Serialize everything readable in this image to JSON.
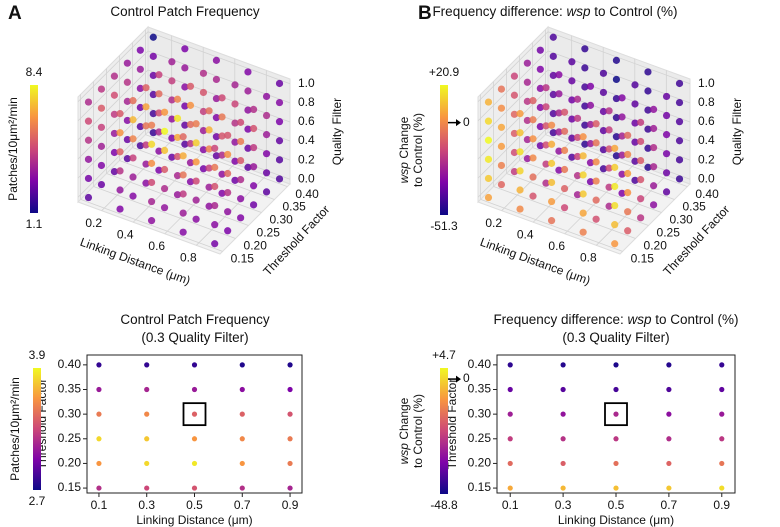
{
  "chart_data": [
    {
      "type": "scatter3d",
      "panel": "A",
      "colormap": "plasma",
      "title": [
        [
          {
            "text": "Control Patch Frequency"
          }
        ]
      ],
      "xlabel": "Linking Distance (μm)",
      "ylabel": "Threshold Factor",
      "zlabel": "Quality Filter",
      "x": [
        0.1,
        0.3,
        0.5,
        0.7,
        0.9
      ],
      "y": [
        0.15,
        0.2,
        0.25,
        0.3,
        0.35,
        0.4
      ],
      "z": [
        0,
        0.2,
        0.4,
        0.6,
        0.8,
        1
      ],
      "xlim": [
        0.05,
        0.95
      ],
      "ylim": [
        0.14,
        0.41
      ],
      "zlim": [
        -0.05,
        1.05
      ],
      "xticks": [
        0.2,
        0.4,
        0.6,
        0.8
      ],
      "yticks": [
        0.15,
        {
          "value": 0.2,
          "label": "0.20"
        },
        0.25,
        {
          "value": 0.3,
          "label": "0.30"
        },
        0.35,
        {
          "value": 0.4,
          "label": "0.40"
        }
      ],
      "zticks": [
        {
          "value": 0,
          "label": "0.0"
        },
        0.2,
        0.4,
        0.6,
        0.8,
        {
          "value": 1,
          "label": "1.0"
        }
      ],
      "values": [
        [
          [
            2.4,
            3.0,
            3.3,
            3.1,
            2.8
          ],
          [
            2.6,
            3.1,
            3.4,
            3.2,
            2.9
          ],
          [
            2.5,
            3.2,
            3.5,
            3.3,
            3.0
          ],
          [
            2.3,
            2.9,
            3.1,
            3.0,
            2.7
          ],
          [
            2.1,
            2.6,
            2.8,
            2.7,
            2.4
          ],
          [
            1.8,
            2.3,
            2.5,
            2.4,
            2.2
          ]
        ],
        [
          [
            2.8,
            3.4,
            3.8,
            3.6,
            3.2
          ],
          [
            3.0,
            3.6,
            4.0,
            3.7,
            3.3
          ],
          [
            2.9,
            3.5,
            3.9,
            3.6,
            3.2
          ],
          [
            2.6,
            3.2,
            3.5,
            3.3,
            3.0
          ],
          [
            2.3,
            2.9,
            3.1,
            3.0,
            2.6
          ],
          [
            2.0,
            2.5,
            2.7,
            2.6,
            2.3
          ]
        ],
        [
          [
            3.4,
            4.2,
            4.8,
            4.4,
            3.9
          ],
          [
            3.7,
            4.6,
            5.2,
            4.8,
            4.2
          ],
          [
            3.5,
            4.4,
            5.0,
            4.6,
            4.0
          ],
          [
            3.1,
            3.9,
            4.3,
            4.0,
            3.5
          ],
          [
            2.7,
            3.3,
            3.6,
            3.4,
            3.0
          ],
          [
            2.3,
            2.8,
            3.0,
            2.9,
            2.5
          ]
        ],
        [
          [
            4.2,
            5.4,
            6.4,
            5.8,
            5.0
          ],
          [
            4.6,
            6.2,
            7.4,
            6.6,
            5.5
          ],
          [
            4.4,
            5.8,
            6.9,
            6.1,
            5.2
          ],
          [
            3.8,
            4.9,
            5.6,
            5.1,
            4.4
          ],
          [
            3.2,
            4.0,
            4.5,
            4.2,
            3.6
          ],
          [
            2.6,
            3.2,
            3.5,
            3.3,
            2.9
          ]
        ],
        [
          [
            4.8,
            6.5,
            7.8,
            7.0,
            5.9
          ],
          [
            5.2,
            7.2,
            8.4,
            7.6,
            6.4
          ],
          [
            4.9,
            6.8,
            8.0,
            7.1,
            6.0
          ],
          [
            4.2,
            5.6,
            6.5,
            5.9,
            5.0
          ],
          [
            3.5,
            4.5,
            5.1,
            4.7,
            4.0
          ],
          [
            2.8,
            3.5,
            3.9,
            3.6,
            3.1
          ]
        ],
        [
          [
            4.0,
            5.2,
            6.0,
            5.5,
            4.7
          ],
          [
            4.3,
            5.7,
            6.6,
            6.0,
            5.1
          ],
          [
            4.1,
            5.4,
            6.2,
            5.7,
            4.8
          ],
          [
            3.5,
            4.6,
            5.2,
            4.8,
            4.1
          ],
          [
            2.9,
            3.7,
            4.1,
            3.8,
            3.3
          ],
          [
            1.1,
            2.9,
            3.2,
            3.0,
            2.6
          ]
        ]
      ],
      "colorbar": {
        "label": [
          [
            {
              "text": "Patches/10μm²/min"
            }
          ]
        ],
        "lim": [
          1.1,
          8.4
        ],
        "ticks": [
          8.4,
          1.1
        ]
      }
    },
    {
      "type": "scatter3d",
      "panel": "B",
      "colormap": "plasma",
      "title": [
        [
          {
            "text": "Frequency difference: "
          },
          {
            "text": "wsp",
            "italic": true
          },
          {
            "text": " to Control (%)"
          }
        ]
      ],
      "xlabel": "Linking Distance (μm)",
      "ylabel": "Threshold Factor",
      "zlabel": "Quality Filter",
      "x": [
        0.1,
        0.3,
        0.5,
        0.7,
        0.9
      ],
      "y": [
        0.15,
        0.2,
        0.25,
        0.3,
        0.35,
        0.4
      ],
      "z": [
        0,
        0.2,
        0.4,
        0.6,
        0.8,
        1
      ],
      "xlim": [
        0.05,
        0.95
      ],
      "ylim": [
        0.14,
        0.41
      ],
      "zlim": [
        -0.05,
        1.05
      ],
      "xticks": [
        0.2,
        0.4,
        0.6,
        0.8
      ],
      "yticks": [
        0.15,
        {
          "value": 0.2,
          "label": "0.20"
        },
        0.25,
        {
          "value": 0.3,
          "label": "0.30"
        },
        0.35,
        {
          "value": 0.4,
          "label": "0.40"
        }
      ],
      "zticks": [
        {
          "value": 0,
          "label": "0.0"
        },
        0.2,
        0.4,
        0.6,
        0.8,
        {
          "value": 1,
          "label": "1.0"
        }
      ],
      "values": [
        [
          [
            5,
            0,
            -5,
            -2,
            3
          ],
          [
            -8,
            -12,
            -15,
            -13,
            -10
          ],
          [
            -18,
            -22,
            -25,
            -23,
            -20
          ],
          [
            -28,
            -32,
            -34,
            -33,
            -30
          ],
          [
            -36,
            -40,
            -42,
            -41,
            -38
          ],
          [
            -42,
            -46,
            -48,
            -47,
            -44
          ]
        ],
        [
          [
            12,
            8,
            4,
            6,
            10
          ],
          [
            -2,
            -6,
            -9,
            -7,
            -4
          ],
          [
            -14,
            -18,
            -21,
            -19,
            -16
          ],
          [
            -25,
            -29,
            -31,
            -30,
            -27
          ],
          [
            -34,
            -38,
            -40,
            -39,
            -36
          ],
          [
            -40,
            -44,
            -47,
            -45,
            -42
          ]
        ],
        [
          [
            18,
            14,
            10,
            12,
            16
          ],
          [
            4,
            0,
            -4,
            -2,
            2
          ],
          [
            -10,
            -14,
            -17,
            -15,
            -12
          ],
          [
            -22,
            -26,
            -28,
            -27,
            -24
          ],
          [
            -32,
            -36,
            -38,
            -37,
            -34
          ],
          [
            -39,
            -43,
            -46,
            -44,
            -41
          ]
        ],
        [
          [
            20.9,
            16,
            12,
            14,
            18
          ],
          [
            6,
            2,
            -2,
            0,
            4
          ],
          [
            -8,
            -12,
            -15,
            -13,
            -10
          ],
          [
            -20,
            -24,
            -27,
            -25,
            -22
          ],
          [
            -31,
            -35,
            -37,
            -36,
            -33
          ],
          [
            -38,
            -42,
            -45,
            -43,
            -40
          ]
        ],
        [
          [
            15,
            11,
            7,
            9,
            13
          ],
          [
            1,
            -3,
            -7,
            -5,
            -1
          ],
          [
            -12,
            -16,
            -19,
            -17,
            -14
          ],
          [
            -24,
            -28,
            -30,
            -29,
            -26
          ],
          [
            -33,
            -37,
            -39,
            -38,
            -35
          ],
          [
            -40,
            -44,
            -51.3,
            -45,
            -42
          ]
        ],
        [
          [
            8,
            4,
            0,
            2,
            6
          ],
          [
            -5,
            -9,
            -12,
            -10,
            -7
          ],
          [
            -16,
            -20,
            -23,
            -21,
            -18
          ],
          [
            -27,
            -31,
            -33,
            -32,
            -29
          ],
          [
            -35,
            -39,
            -41,
            -40,
            -37
          ],
          [
            -41,
            -45,
            -48,
            -46,
            -43
          ]
        ]
      ],
      "colorbar": {
        "label": [
          [
            {
              "text": "wsp",
              "italic": true
            },
            {
              "text": " Change"
            }
          ],
          [
            {
              "text": "to Control (%)"
            }
          ]
        ],
        "lim": [
          -51.3,
          20.9
        ],
        "ticks": [
          {
            "value": 20.9,
            "label": "+20.9"
          },
          0,
          -51.3
        ]
      }
    },
    {
      "type": "scatter",
      "colormap": "plasma",
      "title": [
        [
          {
            "text": "Control Patch Frequency"
          }
        ],
        [
          {
            "text": "(0.3 Quality Filter)"
          }
        ]
      ],
      "xlabel": "Linking Distance (μm)",
      "ylabel": "Threshold Factor",
      "x": [
        0.1,
        0.3,
        0.5,
        0.7,
        0.9
      ],
      "y": [
        0.15,
        0.2,
        0.25,
        0.3,
        0.35,
        0.4
      ],
      "xlim": [
        0.05,
        0.95
      ],
      "ylim": [
        0.14,
        0.42
      ],
      "xticks": [
        0.1,
        0.3,
        0.5,
        0.7,
        0.9
      ],
      "yticks": [
        0.15,
        {
          "value": 0.2,
          "label": "0.20"
        },
        0.25,
        {
          "value": 0.3,
          "label": "0.30"
        },
        0.35,
        {
          "value": 0.4,
          "label": "0.40"
        }
      ],
      "values": [
        [
          3.2,
          3.3,
          3.35,
          3.2,
          3.15
        ],
        [
          3.6,
          3.8,
          3.85,
          3.6,
          3.5
        ],
        [
          3.8,
          3.75,
          3.6,
          3.55,
          3.5
        ],
        [
          3.5,
          3.55,
          3.4,
          3.4,
          3.35
        ],
        [
          3.1,
          3.15,
          3.1,
          3.05,
          3.0
        ],
        [
          2.8,
          2.8,
          2.8,
          2.75,
          2.75
        ]
      ],
      "highlight": {
        "x": 0.5,
        "y": 0.3
      },
      "colorbar": {
        "label": [
          [
            {
              "text": "Patches/10μm²/min"
            }
          ]
        ],
        "lim": [
          2.7,
          3.9
        ],
        "ticks": [
          3.9,
          2.7
        ]
      }
    },
    {
      "type": "scatter",
      "colormap": "plasma",
      "title": [
        [
          {
            "text": "Frequency difference: "
          },
          {
            "text": "wsp",
            "italic": true
          },
          {
            "text": " to Control (%)"
          }
        ],
        [
          {
            "text": "(0.3 Quality Filter)"
          }
        ]
      ],
      "xlabel": "Linking Distance (μm)",
      "ylabel": "Threshold Factor",
      "x": [
        0.1,
        0.3,
        0.5,
        0.7,
        0.9
      ],
      "y": [
        0.15,
        0.2,
        0.25,
        0.3,
        0.35,
        0.4
      ],
      "xlim": [
        0.05,
        0.95
      ],
      "ylim": [
        0.14,
        0.42
      ],
      "xticks": [
        0.1,
        0.3,
        0.5,
        0.7,
        0.9
      ],
      "yticks": [
        0.15,
        {
          "value": 0.2,
          "label": "0.20"
        },
        0.25,
        {
          "value": 0.3,
          "label": "0.30"
        },
        0.35,
        {
          "value": 0.4,
          "label": "0.40"
        }
      ],
      "values": [
        [
          -6,
          -4,
          -3,
          -2,
          1
        ],
        [
          -16,
          -18,
          -15,
          -17,
          -14
        ],
        [
          -24,
          -26,
          -25,
          -27,
          -25
        ],
        [
          -30,
          -32,
          -28,
          -33,
          -31
        ],
        [
          -38,
          -40,
          -42,
          -41,
          -39
        ],
        [
          -45,
          -46,
          -47,
          -46,
          -44
        ]
      ],
      "highlight": {
        "x": 0.5,
        "y": 0.3
      },
      "colorbar": {
        "label": [
          [
            {
              "text": "wsp",
              "italic": true
            },
            {
              "text": " Change"
            }
          ],
          [
            {
              "text": "to Control (%)"
            }
          ]
        ],
        "lim": [
          -48.8,
          4.7
        ],
        "ticks": [
          {
            "value": 4.7,
            "label": "+4.7"
          },
          0,
          -48.8
        ]
      }
    }
  ]
}
